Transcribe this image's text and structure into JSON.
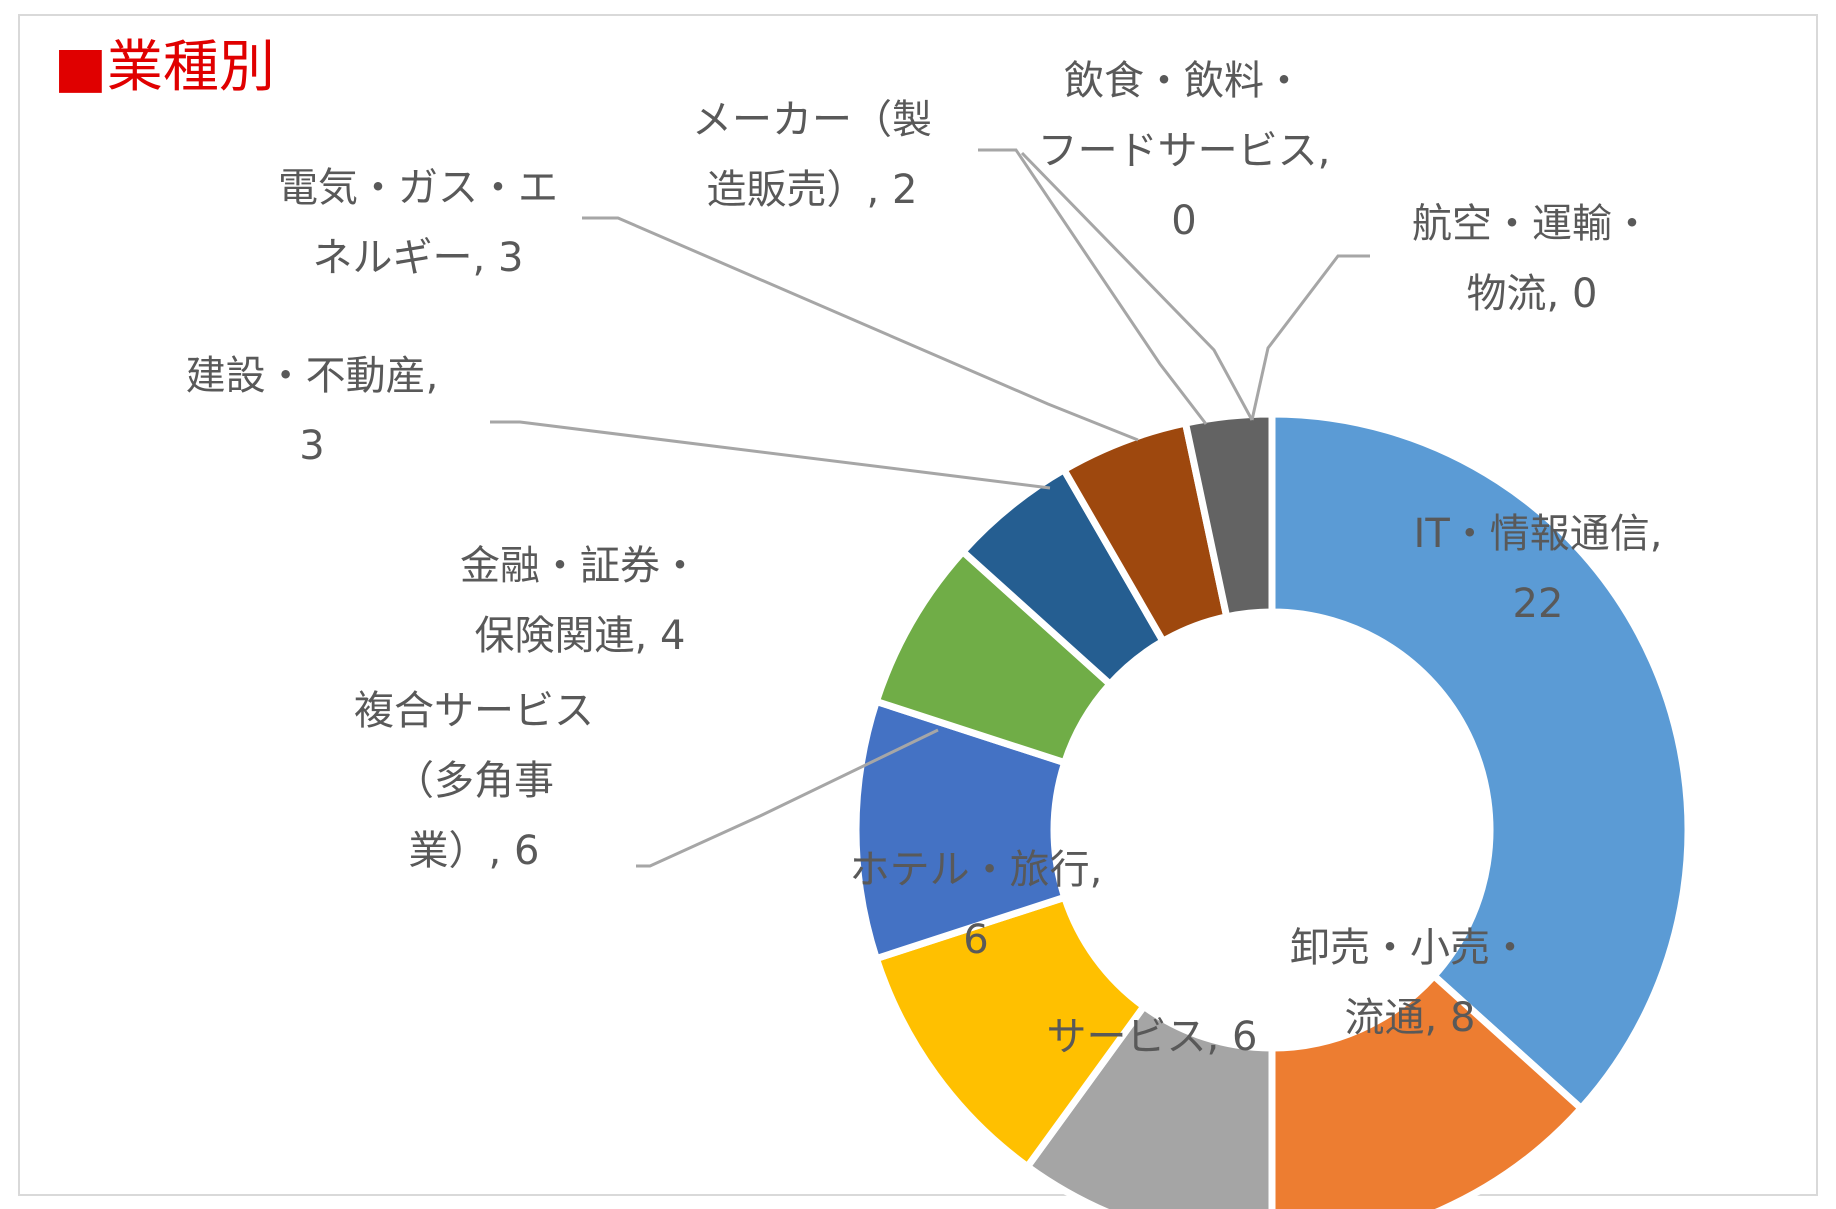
{
  "title": "■業種別",
  "chart_data": {
    "type": "donut",
    "title": "■業種別",
    "total_shown": "n",
    "series": [
      {
        "name": "IT・情報通信",
        "value": 22,
        "color": "#5b9bd5",
        "label_lines": [
          "IT・情報通信,",
          "22"
        ]
      },
      {
        "name": "卸売・小売・流通",
        "value": 8,
        "color": "#ed7d31",
        "label_lines": [
          "卸売・小売・",
          "流通, 8"
        ]
      },
      {
        "name": "サービス",
        "value": 6,
        "color": "#a5a5a5",
        "label_lines": [
          "サービス, 6"
        ]
      },
      {
        "name": "ホテル・旅行",
        "value": 6,
        "color": "#ffc000",
        "label_lines": [
          "ホテル・旅行,",
          "6"
        ]
      },
      {
        "name": "複合サービス（多角事業）",
        "value": 6,
        "color": "#4472c4",
        "label_lines": [
          "複合サービス",
          "（多角事",
          "業）, 6"
        ]
      },
      {
        "name": "金融・証券・保険関連",
        "value": 4,
        "color": "#70ad47",
        "label_lines": [
          "金融・証券・",
          "保険関連, 4"
        ]
      },
      {
        "name": "建設・不動産",
        "value": 3,
        "color": "#255e91",
        "label_lines": [
          "建設・不動産,",
          "3"
        ]
      },
      {
        "name": "電気・ガス・エネルギー",
        "value": 3,
        "color": "#9e480e",
        "label_lines": [
          "電気・ガス・エ",
          "ネルギー, 3"
        ]
      },
      {
        "name": "メーカー（製造販売）",
        "value": 2,
        "color": "#636363",
        "label_lines": [
          "メーカー（製",
          "造販売）, 2"
        ]
      },
      {
        "name": "飲食・飲料・フードサービス",
        "value": 0,
        "color": "#997300",
        "label_lines": [
          "飲食・飲料・",
          "フードサービス,",
          "0"
        ]
      },
      {
        "name": "航空・運輸・物流",
        "value": 0,
        "color": "#264478",
        "label_lines": [
          "航空・運輸・",
          "物流, 0"
        ]
      }
    ]
  }
}
